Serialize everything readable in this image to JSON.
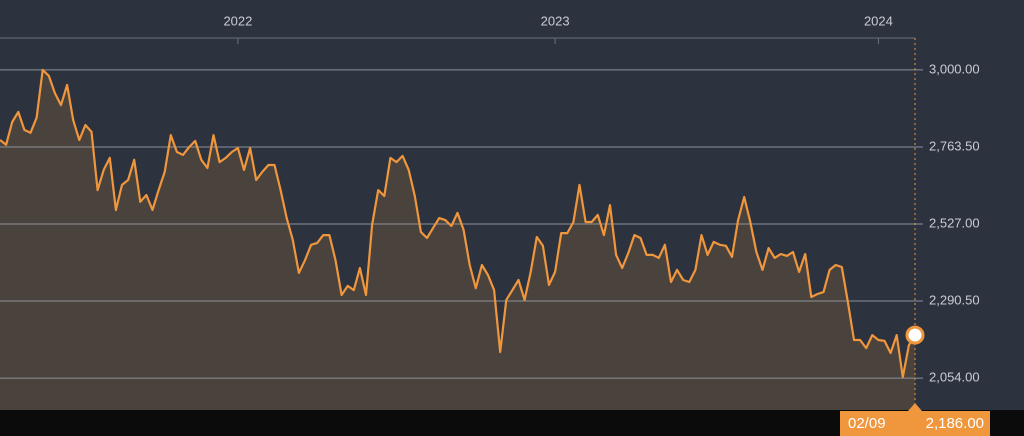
{
  "chart_data": {
    "type": "area",
    "categories": [
      null,
      null,
      null,
      null,
      null,
      null,
      null,
      null,
      null,
      null,
      null,
      null,
      null,
      null,
      null,
      null,
      null,
      null,
      null,
      null,
      null,
      null,
      null,
      null,
      null,
      null,
      null,
      null,
      null,
      null,
      null,
      null,
      null,
      null,
      null,
      null,
      null,
      null,
      null,
      "2022",
      null,
      null,
      null,
      null,
      null,
      null,
      null,
      null,
      null,
      null,
      null,
      null,
      null,
      null,
      null,
      null,
      null,
      null,
      null,
      null,
      null,
      null,
      null,
      null,
      null,
      null,
      null,
      null,
      null,
      null,
      null,
      null,
      null,
      null,
      null,
      null,
      null,
      null,
      null,
      null,
      null,
      null,
      null,
      null,
      null,
      null,
      null,
      null,
      null,
      null,
      null,
      "2023",
      null,
      null,
      null,
      null,
      null,
      null,
      null,
      null,
      null,
      null,
      null,
      null,
      null,
      null,
      null,
      null,
      null,
      null,
      null,
      null,
      null,
      null,
      null,
      null,
      null,
      null,
      null,
      null,
      null,
      null,
      null,
      null,
      null,
      null,
      null,
      null,
      null,
      null,
      null,
      null,
      null,
      null,
      null,
      null,
      null,
      null,
      null,
      null,
      null,
      null,
      null,
      null,
      "2024",
      null,
      null,
      null,
      null,
      null,
      null
    ],
    "values": [
      2785,
      2770,
      2840,
      2871,
      2816,
      2807,
      2853,
      3000,
      2982,
      2929,
      2892,
      2954,
      2846,
      2785,
      2831,
      2810,
      2631,
      2693,
      2730,
      2570,
      2647,
      2662,
      2724,
      2595,
      2616,
      2570,
      2631,
      2687,
      2800,
      2748,
      2739,
      2763,
      2782,
      2724,
      2699,
      2800,
      2717,
      2730,
      2748,
      2760,
      2693,
      2760,
      2662,
      2687,
      2708,
      2708,
      2631,
      2545,
      2478,
      2377,
      2416,
      2463,
      2469,
      2493,
      2493,
      2416,
      2309,
      2337,
      2324,
      2392,
      2309,
      2524,
      2631,
      2613,
      2730,
      2717,
      2736,
      2693,
      2613,
      2502,
      2484,
      2515,
      2545,
      2539,
      2521,
      2561,
      2509,
      2401,
      2330,
      2401,
      2370,
      2324,
      2134,
      2294,
      2324,
      2355,
      2294,
      2380,
      2487,
      2460,
      2340,
      2380,
      2499,
      2499,
      2533,
      2647,
      2533,
      2533,
      2555,
      2493,
      2585,
      2432,
      2392,
      2438,
      2493,
      2484,
      2432,
      2432,
      2423,
      2463,
      2349,
      2386,
      2355,
      2349,
      2386,
      2493,
      2432,
      2472,
      2463,
      2460,
      2426,
      2539,
      2610,
      2533,
      2441,
      2386,
      2453,
      2423,
      2435,
      2429,
      2441,
      2380,
      2435,
      2303,
      2312,
      2318,
      2386,
      2401,
      2395,
      2287,
      2171,
      2171,
      2146,
      2186,
      2171,
      2168,
      2131,
      2186,
      2057,
      2155,
      2186
    ],
    "color": "#f0963c",
    "ylim": [
      1956,
      3098
    ],
    "yticks": [
      {
        "value": 2054,
        "label": "2,054.00"
      },
      {
        "value": 2290.5,
        "label": "2,290.50"
      },
      {
        "value": 2527,
        "label": "2,527.00"
      },
      {
        "value": 2763.5,
        "label": "2,763.50"
      },
      {
        "value": 3000,
        "label": "3,000.00"
      }
    ],
    "grid": true,
    "cursor": {
      "date": "02/09",
      "value": 2186,
      "value_label": "2,186.00"
    }
  }
}
